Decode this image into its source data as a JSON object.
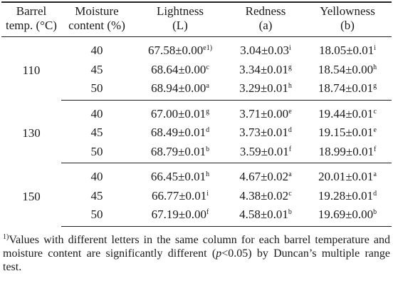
{
  "header": {
    "col1": [
      "Barrel",
      "temp. (°C)"
    ],
    "col2": [
      "Moisture",
      "content (%)"
    ],
    "col3": [
      "Lightness",
      "(L)"
    ],
    "col4": [
      "Redness",
      "(a)"
    ],
    "col5": [
      "Yellowness",
      "(b)"
    ]
  },
  "groups": [
    {
      "temp": "110",
      "rows": [
        {
          "moisture": "40",
          "L": "67.58±0.00",
          "L_sup": "e1)",
          "a": "3.04±0.03",
          "a_sup": "i",
          "b": "18.05±0.01",
          "b_sup": "i"
        },
        {
          "moisture": "45",
          "L": "68.64±0.00",
          "L_sup": "c",
          "a": "3.34±0.01",
          "a_sup": "g",
          "b": "18.54±0.00",
          "b_sup": "h"
        },
        {
          "moisture": "50",
          "L": "68.94±0.00",
          "L_sup": "a",
          "a": "3.29±0.01",
          "a_sup": "h",
          "b": "18.74±0.01",
          "b_sup": "g"
        }
      ]
    },
    {
      "temp": "130",
      "rows": [
        {
          "moisture": "40",
          "L": "67.00±0.01",
          "L_sup": "g",
          "a": "3.71±0.00",
          "a_sup": "e",
          "b": "19.44±0.01",
          "b_sup": "c"
        },
        {
          "moisture": "45",
          "L": "68.49±0.01",
          "L_sup": "d",
          "a": "3.73±0.01",
          "a_sup": "d",
          "b": "19.15±0.01",
          "b_sup": "e"
        },
        {
          "moisture": "50",
          "L": "68.79±0.01",
          "L_sup": "b",
          "a": "3.59±0.01",
          "a_sup": "f",
          "b": "18.99±0.01",
          "b_sup": "f"
        }
      ]
    },
    {
      "temp": "150",
      "rows": [
        {
          "moisture": "40",
          "L": "66.45±0.01",
          "L_sup": "h",
          "a": "4.67±0.02",
          "a_sup": "a",
          "b": "20.01±0.01",
          "b_sup": "a"
        },
        {
          "moisture": "45",
          "L": "66.77±0.01",
          "L_sup": "i",
          "a": "4.38±0.02",
          "a_sup": "c",
          "b": "19.28±0.01",
          "b_sup": "d"
        },
        {
          "moisture": "50",
          "L": "67.19±0.00",
          "L_sup": "f",
          "a": "4.58±0.01",
          "a_sup": "b",
          "b": "19.69±0.00",
          "b_sup": "b"
        }
      ]
    }
  ],
  "footnote": {
    "marker": "1)",
    "text_before": "Values with different letters in the same column for each barrel temperature and moisture content are significantly different (",
    "italic": "p",
    "text_after": "<0.05) by Duncan’s multiple range test."
  }
}
